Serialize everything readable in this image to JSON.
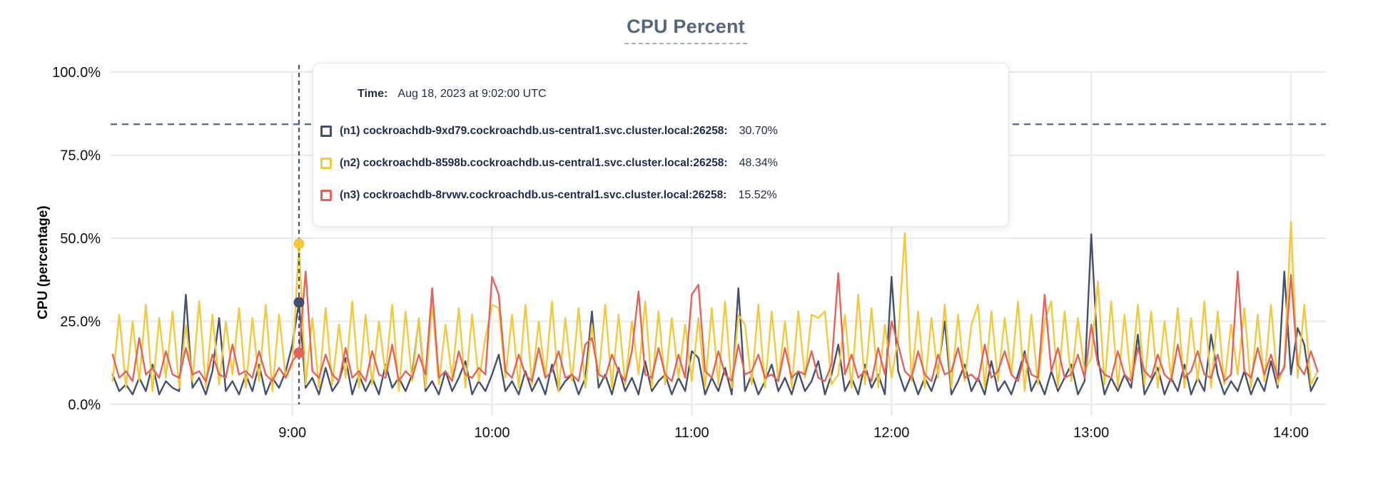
{
  "title": "CPU Percent",
  "tooltip": {
    "time_label": "Time:",
    "time_value": "Aug 18, 2023 at 9:02:00 UTC"
  },
  "chart_data": {
    "type": "line",
    "title": "CPU Percent",
    "ylabel": "CPU (percentage)",
    "ylim": [
      0,
      100
    ],
    "grid": true,
    "legend_position": "tooltip",
    "y_ticks": [
      {
        "value": 0,
        "label": "0.0%"
      },
      {
        "value": 25,
        "label": "25.0%"
      },
      {
        "value": 50,
        "label": "50.0%"
      },
      {
        "value": 75,
        "label": "75.0%"
      },
      {
        "value": 100,
        "label": "100.0%"
      }
    ],
    "x_ticks": [
      {
        "hours": 9,
        "label": "9:00"
      },
      {
        "hours": 10,
        "label": "10:00"
      },
      {
        "hours": 11,
        "label": "11:00"
      },
      {
        "hours": 12,
        "label": "12:00"
      },
      {
        "hours": 13,
        "label": "13:00"
      },
      {
        "hours": 14,
        "label": "14:00"
      }
    ],
    "xlim_hours": [
      8.09,
      14.175
    ],
    "x_start_hours": 8.1,
    "x_step_hours": 0.0333333,
    "threshold_percent": 84.3,
    "threshold_color": "#54718e",
    "hover": {
      "x_hours": 9.0333,
      "line_color": "#3f5469",
      "points": [
        {
          "series": "n1",
          "value_percent": 30.7,
          "value_label": "30.70%"
        },
        {
          "series": "n2",
          "value_percent": 48.34,
          "value_label": "48.34%"
        },
        {
          "series": "n3",
          "value_percent": 15.52,
          "value_label": "15.52%"
        }
      ]
    },
    "series": [
      {
        "id": "n1",
        "name": "(n1) cockroachdb-9xd79.cockroachdb.us-central1.svc.cluster.local:26258:",
        "color": "#44516b",
        "values": [
          9,
          4,
          6,
          3,
          8,
          4,
          12,
          3,
          7,
          5,
          4,
          33,
          5,
          8,
          3,
          10,
          26,
          4,
          7,
          3,
          9,
          4,
          12,
          3,
          8,
          5,
          10,
          18,
          30.7,
          5,
          8,
          3,
          11,
          4,
          7,
          14,
          3,
          9,
          4,
          8,
          3,
          12,
          5,
          8,
          4,
          9,
          25.5,
          4,
          7,
          3,
          10,
          4,
          8,
          13,
          3,
          7,
          4,
          9,
          15,
          4,
          7,
          3,
          10,
          4,
          8,
          3,
          12,
          4,
          7,
          9,
          3,
          8,
          28,
          5,
          9,
          3,
          11,
          4,
          8,
          3,
          13,
          4,
          7,
          9,
          3,
          8,
          4,
          16,
          14,
          3,
          8,
          4,
          11,
          3,
          35,
          4,
          9,
          3,
          7,
          12,
          4,
          8,
          3,
          10,
          4,
          7,
          13,
          3,
          9,
          18,
          4,
          8,
          3,
          12,
          5,
          9,
          3,
          38.4,
          10,
          4,
          9,
          3,
          8,
          4,
          10,
          25,
          3,
          7,
          12,
          4,
          8,
          3,
          13,
          4,
          7,
          3,
          9,
          16,
          4,
          8,
          3,
          10,
          4,
          8,
          12,
          3,
          7,
          51.2,
          14,
          3,
          8,
          4,
          9,
          5,
          21,
          3,
          7,
          11,
          3,
          8,
          4,
          12,
          3,
          8,
          4,
          21,
          9,
          3,
          7,
          4,
          10,
          3,
          8,
          4,
          13,
          5,
          40,
          9,
          23,
          18,
          4,
          8
        ]
      },
      {
        "id": "n2",
        "name": "(n2) cockroachdb-8598b.cockroachdb.us-central1.svc.cluster.local:26258:",
        "color": "#f2c83d",
        "values": [
          7,
          27,
          5,
          25,
          7,
          30,
          4,
          26,
          8,
          28,
          5,
          24,
          7,
          31,
          5,
          27,
          6,
          25,
          9,
          29,
          5,
          26,
          7,
          30,
          4,
          27,
          8,
          12,
          48.3,
          6,
          26,
          5,
          29,
          6,
          24,
          8,
          31,
          5,
          27,
          6,
          25,
          9,
          30,
          4,
          28,
          7,
          26,
          5,
          31,
          6,
          24,
          8,
          29,
          5,
          27,
          7,
          20,
          30,
          29,
          8,
          27,
          5,
          30,
          6,
          25,
          8,
          31,
          4,
          26,
          7,
          29,
          5,
          24,
          8,
          30,
          5,
          27,
          6,
          25,
          9,
          31,
          5,
          28,
          6,
          26,
          8,
          24,
          7,
          26,
          5,
          29,
          6,
          31,
          5,
          27,
          24,
          6,
          30,
          5,
          28,
          7,
          25,
          5,
          28,
          8,
          27,
          26,
          28,
          6,
          9,
          27,
          5,
          33,
          6,
          29,
          5,
          24,
          8,
          20,
          51.5,
          7,
          28,
          5,
          26,
          8,
          30,
          5,
          27,
          7,
          24,
          30,
          5,
          28,
          7,
          26,
          9,
          31,
          4,
          27,
          6,
          25,
          31,
          5,
          28,
          7,
          26,
          10,
          14,
          37,
          6,
          31,
          5,
          27,
          7,
          30,
          6,
          28,
          5,
          25,
          8,
          29,
          5,
          26,
          7,
          31,
          5,
          28,
          6,
          24,
          9,
          29,
          5,
          27,
          7,
          30,
          6,
          12,
          55,
          8,
          30,
          6,
          10
        ]
      },
      {
        "id": "n3",
        "name": "(n3) cockroachdb-8rvwv.cockroachdb.us-central1.svc.cluster.local:26258:",
        "color": "#e0635c",
        "values": [
          15,
          8,
          10,
          7,
          20,
          9,
          11,
          8,
          16,
          9,
          8,
          17,
          9,
          10,
          7,
          15,
          9,
          8,
          18,
          9,
          10,
          8,
          16,
          9,
          7,
          11,
          8,
          13,
          15.5,
          40,
          10,
          8,
          15,
          9,
          7,
          17,
          8,
          10,
          7,
          16,
          9,
          8,
          18,
          7,
          10,
          8,
          15,
          9,
          35,
          8,
          10,
          7,
          16,
          9,
          8,
          11,
          9,
          38.4,
          33,
          10,
          8,
          15,
          9,
          7,
          17,
          8,
          10,
          16,
          8,
          9,
          7,
          18,
          20,
          9,
          8,
          15,
          10,
          7,
          16,
          34,
          9,
          8,
          17,
          9,
          7,
          15,
          8,
          33,
          36,
          10,
          8,
          16,
          9,
          7,
          18,
          9,
          10,
          15,
          8,
          9,
          7,
          17,
          8,
          10,
          9,
          16,
          8,
          7,
          12,
          39.5,
          9,
          15,
          8,
          10,
          7,
          17,
          9,
          25,
          18,
          10,
          8,
          16,
          9,
          7,
          15,
          9,
          10,
          17,
          8,
          9,
          7,
          18,
          8,
          10,
          16,
          9,
          7,
          15,
          9,
          8,
          33,
          10,
          17,
          8,
          9,
          15,
          8,
          24,
          12,
          9,
          8,
          16,
          9,
          7,
          17,
          10,
          8,
          15,
          9,
          7,
          18,
          8,
          10,
          16,
          9,
          8,
          15,
          7,
          9,
          40,
          10,
          8,
          17,
          9,
          15,
          8,
          11,
          39,
          12,
          9,
          16,
          10
        ]
      }
    ]
  }
}
